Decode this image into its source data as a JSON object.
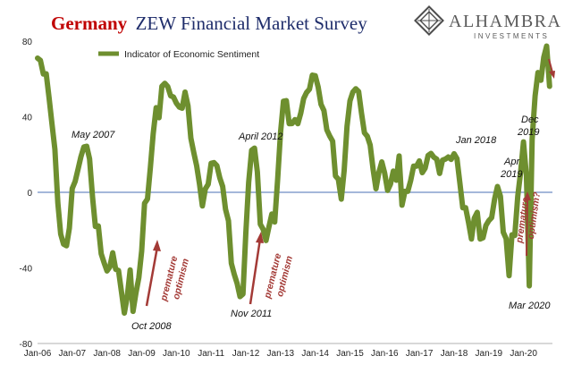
{
  "title": {
    "part1": "Germany",
    "part2": "ZEW Financial Market Survey"
  },
  "logo": {
    "name": "ALHAMBRA",
    "sub": "INVESTMENTS",
    "icon": "alhambra-diamond-logo"
  },
  "colors": {
    "line": "#6e8f2f",
    "zero_line": "#4a6fb5",
    "arrow": "#a33a36",
    "text": "#111111"
  },
  "chart_data": {
    "type": "line",
    "title": "Germany ZEW Financial Market Survey",
    "xlabel": "",
    "ylabel": "",
    "ylim": [
      -80,
      80
    ],
    "yticks": [
      -80,
      -40,
      0,
      40,
      80
    ],
    "x_range": [
      "2006-01",
      "2020-11"
    ],
    "xticks": [
      "Jan-06",
      "Jan-07",
      "Jan-08",
      "Jan-09",
      "Jan-10",
      "Jan-11",
      "Jan-12",
      "Jan-13",
      "Jan-14",
      "Jan-15",
      "Jan-16",
      "Jan-17",
      "Jan-18",
      "Jan-19",
      "Jan-20"
    ],
    "legend": {
      "position": "top-left",
      "entries": [
        "Indicator of Economic Sentiment"
      ]
    },
    "grid": false,
    "series": [
      {
        "name": "Indicator of Economic Sentiment",
        "x": [
          "2006-01",
          "2006-02",
          "2006-03",
          "2006-04",
          "2006-05",
          "2006-06",
          "2006-07",
          "2006-08",
          "2006-09",
          "2006-10",
          "2006-11",
          "2006-12",
          "2007-01",
          "2007-02",
          "2007-03",
          "2007-04",
          "2007-05",
          "2007-06",
          "2007-07",
          "2007-08",
          "2007-09",
          "2007-10",
          "2007-11",
          "2007-12",
          "2008-01",
          "2008-02",
          "2008-03",
          "2008-04",
          "2008-05",
          "2008-06",
          "2008-07",
          "2008-08",
          "2008-09",
          "2008-10",
          "2008-11",
          "2008-12",
          "2009-01",
          "2009-02",
          "2009-03",
          "2009-04",
          "2009-05",
          "2009-06",
          "2009-07",
          "2009-08",
          "2009-09",
          "2009-10",
          "2009-11",
          "2009-12",
          "2010-01",
          "2010-02",
          "2010-03",
          "2010-04",
          "2010-05",
          "2010-06",
          "2010-07",
          "2010-08",
          "2010-09",
          "2010-10",
          "2010-11",
          "2010-12",
          "2011-01",
          "2011-02",
          "2011-03",
          "2011-04",
          "2011-05",
          "2011-06",
          "2011-07",
          "2011-08",
          "2011-09",
          "2011-10",
          "2011-11",
          "2011-12",
          "2012-01",
          "2012-02",
          "2012-03",
          "2012-04",
          "2012-05",
          "2012-06",
          "2012-07",
          "2012-08",
          "2012-09",
          "2012-10",
          "2012-11",
          "2012-12",
          "2013-01",
          "2013-02",
          "2013-03",
          "2013-04",
          "2013-05",
          "2013-06",
          "2013-07",
          "2013-08",
          "2013-09",
          "2013-10",
          "2013-11",
          "2013-12",
          "2014-01",
          "2014-02",
          "2014-03",
          "2014-04",
          "2014-05",
          "2014-06",
          "2014-07",
          "2014-08",
          "2014-09",
          "2014-10",
          "2014-11",
          "2014-12",
          "2015-01",
          "2015-02",
          "2015-03",
          "2015-04",
          "2015-05",
          "2015-06",
          "2015-07",
          "2015-08",
          "2015-09",
          "2015-10",
          "2015-11",
          "2015-12",
          "2016-01",
          "2016-02",
          "2016-03",
          "2016-04",
          "2016-05",
          "2016-06",
          "2016-07",
          "2016-08",
          "2016-09",
          "2016-10",
          "2016-11",
          "2016-12",
          "2017-01",
          "2017-02",
          "2017-03",
          "2017-04",
          "2017-05",
          "2017-06",
          "2017-07",
          "2017-08",
          "2017-09",
          "2017-10",
          "2017-11",
          "2017-12",
          "2018-01",
          "2018-02",
          "2018-03",
          "2018-04",
          "2018-05",
          "2018-06",
          "2018-07",
          "2018-08",
          "2018-09",
          "2018-10",
          "2018-11",
          "2018-12",
          "2019-01",
          "2019-02",
          "2019-03",
          "2019-04",
          "2019-05",
          "2019-06",
          "2019-07",
          "2019-08",
          "2019-09",
          "2019-10",
          "2019-11",
          "2019-12",
          "2020-01",
          "2020-02",
          "2020-03",
          "2020-04",
          "2020-05",
          "2020-06",
          "2020-07",
          "2020-08",
          "2020-09",
          "2020-10"
        ],
        "values": [
          71.0,
          69.8,
          62.6,
          62.7,
          50.0,
          36.0,
          22.8,
          -5.6,
          -22.1,
          -27.4,
          -28.3,
          -19.0,
          2.0,
          5.8,
          12.2,
          18.8,
          24.0,
          24.4,
          17.7,
          -2.4,
          -18.1,
          -17.8,
          -32.5,
          -37.2,
          -41.6,
          -39.5,
          -32.0,
          -40.7,
          -41.4,
          -52.4,
          -63.9,
          -55.5,
          -41.1,
          -63.0,
          -53.5,
          -45.2,
          -31.0,
          -5.8,
          -3.5,
          13.0,
          31.1,
          44.8,
          39.5,
          56.1,
          57.7,
          56.0,
          51.1,
          50.4,
          47.2,
          45.1,
          44.5,
          53.0,
          45.8,
          28.7,
          21.2,
          14.0,
          4.3,
          -7.2,
          1.8,
          4.3,
          15.4,
          15.7,
          14.1,
          7.6,
          3.1,
          -9.0,
          -15.1,
          -37.6,
          -43.3,
          -48.3,
          -55.2,
          -53.8,
          -21.6,
          5.4,
          22.3,
          23.4,
          10.8,
          -16.9,
          -19.6,
          -25.5,
          -18.2,
          -11.5,
          -15.7,
          6.9,
          31.5,
          48.2,
          48.5,
          36.3,
          36.4,
          38.5,
          36.3,
          42.0,
          49.6,
          52.8,
          54.6,
          62.0,
          61.7,
          55.7,
          46.6,
          43.2,
          33.1,
          29.8,
          27.1,
          8.6,
          6.9,
          -3.6,
          11.5,
          34.9,
          48.4,
          53.0,
          54.8,
          53.3,
          41.9,
          31.5,
          29.7,
          25.0,
          12.1,
          1.9,
          10.4,
          16.1,
          10.2,
          1.0,
          4.3,
          11.2,
          6.4,
          19.2,
          -6.8,
          0.5,
          0.5,
          6.2,
          13.8,
          13.8,
          16.6,
          10.4,
          12.8,
          19.5,
          20.6,
          18.6,
          17.5,
          10.0,
          17.0,
          17.6,
          18.7,
          17.4,
          20.4,
          17.8,
          5.1,
          -8.2,
          -8.2,
          -16.1,
          -24.7,
          -13.7,
          -10.6,
          -24.7,
          -24.1,
          -17.5,
          -15.0,
          -13.4,
          -3.6,
          3.1,
          -2.1,
          -21.1,
          -24.5,
          -44.1,
          -22.5,
          -22.8,
          -2.1,
          10.7,
          26.7,
          8.7,
          -49.5,
          28.2,
          51.0,
          63.4,
          59.3,
          71.5,
          77.4,
          56.1
        ]
      }
    ],
    "annotations": [
      {
        "text": "May 2007"
      },
      {
        "text": "Oct 2008"
      },
      {
        "text": "April 2012"
      },
      {
        "text": "Nov 2011"
      },
      {
        "text": "Jan 2018"
      },
      {
        "text": "Apr 2019"
      },
      {
        "text": "Dec 2019"
      },
      {
        "text": "Mar 2020"
      },
      {
        "text": "premature optimism",
        "style": "arrow"
      },
      {
        "text": "premature optimism",
        "style": "arrow"
      },
      {
        "text": "premature optimism",
        "style": "arrow"
      }
    ]
  }
}
